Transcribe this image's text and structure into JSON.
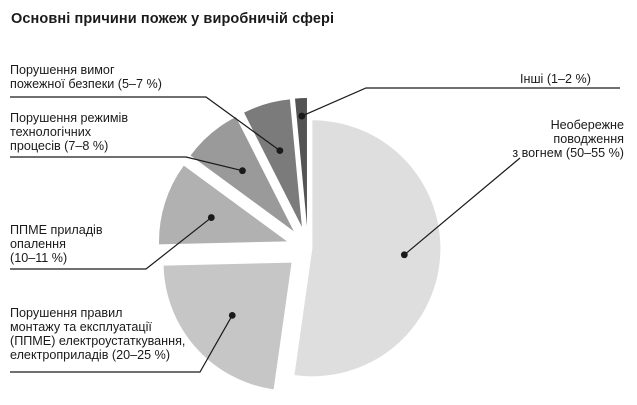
{
  "title": "Основні причини пожеж у виробничій сфері",
  "colors": {
    "leader": "#1a1a1a",
    "slices": [
      "#dedede",
      "#c6c6c6",
      "#b1b1b1",
      "#9a9a9a",
      "#7b7b7b",
      "#545454"
    ]
  },
  "chart_data": {
    "type": "pie",
    "exploded": true,
    "title": "Основні причини пожеж у виробничій сфері",
    "slices": [
      {
        "label": "Необережне поводження з вогнем (50–55 %)",
        "range": [
          50,
          55
        ],
        "value": 52.5
      },
      {
        "label": "Порушення правил монтажу та експлуатації (ППМЕ) електроустаткування, електроприладів (20–25 %)",
        "range": [
          20,
          25
        ],
        "value": 22.5
      },
      {
        "label": "ППМЕ приладів опалення (10–11 %)",
        "range": [
          10,
          11
        ],
        "value": 10.5
      },
      {
        "label": "Порушення режимів технологічних процесів (7–8 %)",
        "range": [
          7,
          8
        ],
        "value": 7.5
      },
      {
        "label": "Порушення вимог пожежної безпеки (5–7 %)",
        "range": [
          5,
          7
        ],
        "value": 6
      },
      {
        "label": "Інші (1–2 %)",
        "range": [
          1,
          2
        ],
        "value": 1.5
      }
    ]
  }
}
